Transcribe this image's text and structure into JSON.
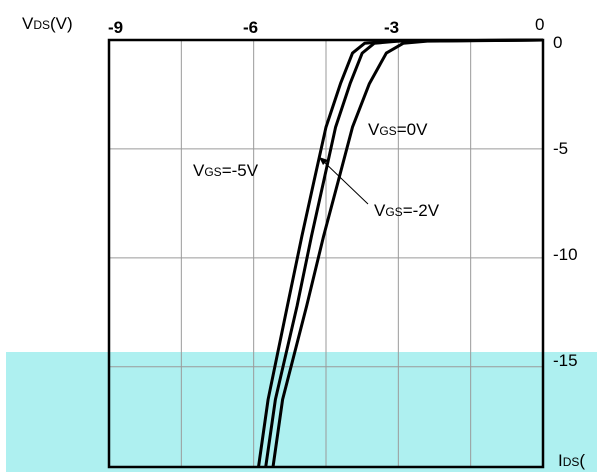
{
  "chart_data": {
    "type": "line",
    "ylabel_main": "V",
    "ylabel_sub": "DS",
    "ylabel_unit": "(V)",
    "xlabel_main": "I",
    "xlabel_sub": "DS",
    "xlabel_unit": "(",
    "x_ticks": [
      "-9",
      "-6",
      "-3",
      "0"
    ],
    "y_ticks": [
      "0",
      "-5",
      "-10",
      "-15"
    ],
    "xlim": [
      -9,
      0
    ],
    "ylim": [
      0,
      -19.6
    ],
    "grid": true,
    "series": [
      {
        "name_main": "V",
        "name_sub": "GS",
        "name_rest": "=-5V",
        "points": [
          [
            -5.9,
            -19.6
          ],
          [
            -5.7,
            -16.5
          ],
          [
            -5.3,
            -12.2
          ],
          [
            -5.0,
            -9.0
          ],
          [
            -4.75,
            -6.5
          ],
          [
            -4.5,
            -4.0
          ],
          [
            -4.2,
            -2.0
          ],
          [
            -3.95,
            -0.6
          ],
          [
            -3.7,
            -0.15
          ],
          [
            -3.2,
            -0.05
          ],
          [
            0,
            0
          ]
        ]
      },
      {
        "name_main": "V",
        "name_sub": "GS",
        "name_rest": "=-2V",
        "points": [
          [
            -5.75,
            -19.6
          ],
          [
            -5.55,
            -16.5
          ],
          [
            -5.1,
            -12.2
          ],
          [
            -4.8,
            -9.0
          ],
          [
            -4.55,
            -6.5
          ],
          [
            -4.3,
            -4.0
          ],
          [
            -4.0,
            -2.0
          ],
          [
            -3.75,
            -0.6
          ],
          [
            -3.5,
            -0.15
          ],
          [
            -3.0,
            -0.05
          ],
          [
            0,
            0
          ]
        ]
      },
      {
        "name_main": "V",
        "name_sub": "GS",
        "name_rest": "=0V",
        "points": [
          [
            -5.6,
            -19.6
          ],
          [
            -5.4,
            -16.5
          ],
          [
            -4.9,
            -12.2
          ],
          [
            -4.55,
            -9.0
          ],
          [
            -4.25,
            -6.5
          ],
          [
            -3.95,
            -4.0
          ],
          [
            -3.6,
            -2.0
          ],
          [
            -3.25,
            -0.6
          ],
          [
            -2.9,
            -0.15
          ],
          [
            -2.4,
            -0.05
          ],
          [
            0,
            0
          ]
        ]
      }
    ]
  },
  "colors": {
    "axis": "#000000",
    "grid": "#9a9a9a",
    "curve": "#000000",
    "overlay": "#aef0f0"
  }
}
